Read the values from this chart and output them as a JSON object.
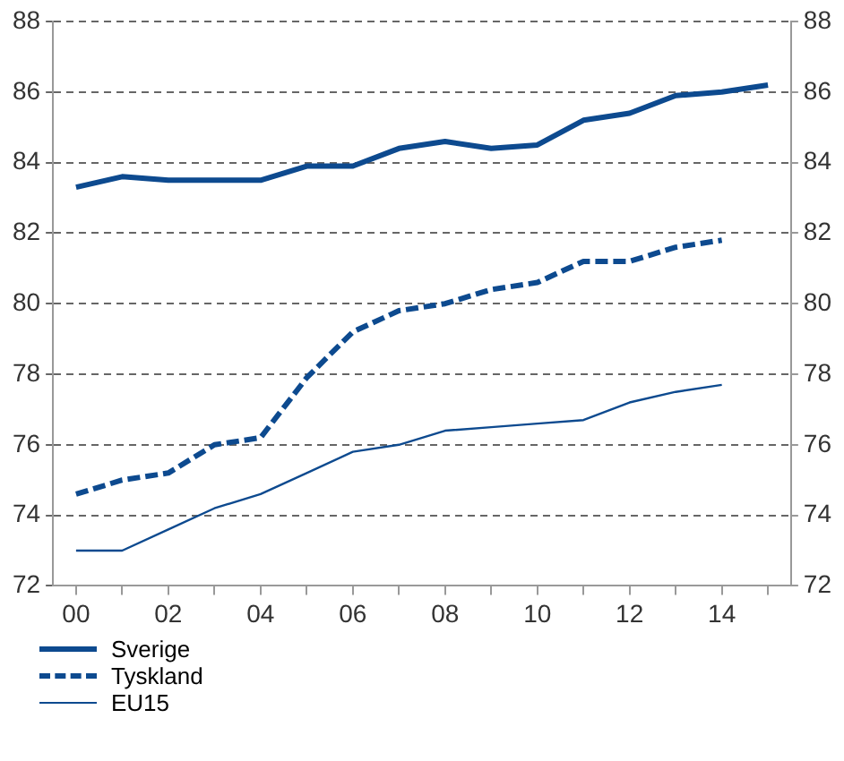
{
  "chart_data": {
    "type": "line",
    "x": [
      0,
      1,
      2,
      3,
      4,
      5,
      6,
      7,
      8,
      9,
      10,
      11,
      12,
      13,
      14,
      15
    ],
    "series": [
      {
        "name": "Sverige",
        "color": "#0d4a8f",
        "line_style": "solid",
        "values": [
          83.3,
          83.6,
          83.5,
          83.5,
          83.5,
          83.9,
          83.9,
          84.4,
          84.6,
          84.4,
          84.5,
          85.2,
          85.4,
          85.9,
          86.0,
          86.2
        ]
      },
      {
        "name": "Tyskland",
        "color": "#0d4a8f",
        "line_style": "dashed",
        "values": [
          74.6,
          75.0,
          75.2,
          76.0,
          76.2,
          77.9,
          79.2,
          79.8,
          80.0,
          80.4,
          80.6,
          81.2,
          81.2,
          81.6,
          81.8,
          null
        ]
      },
      {
        "name": "EU15",
        "color": "#0d4a8f",
        "line_style": "solid",
        "values": [
          73.0,
          73.0,
          73.6,
          74.2,
          74.6,
          75.2,
          75.8,
          76.0,
          76.4,
          76.5,
          76.6,
          76.7,
          77.2,
          77.5,
          77.7,
          null
        ]
      }
    ],
    "xlim": [
      -0.5,
      15.5
    ],
    "xticks": [
      {
        "value": 0,
        "label": "00"
      },
      {
        "value": 1,
        "label": null
      },
      {
        "value": 2,
        "label": "02"
      },
      {
        "value": 3,
        "label": null
      },
      {
        "value": 4,
        "label": "04"
      },
      {
        "value": 5,
        "label": null
      },
      {
        "value": 6,
        "label": "06"
      },
      {
        "value": 7,
        "label": null
      },
      {
        "value": 8,
        "label": "08"
      },
      {
        "value": 9,
        "label": null
      },
      {
        "value": 10,
        "label": "10"
      },
      {
        "value": 11,
        "label": null
      },
      {
        "value": 12,
        "label": "12"
      },
      {
        "value": 13,
        "label": null
      },
      {
        "value": 14,
        "label": "14"
      },
      {
        "value": 15,
        "label": null
      }
    ],
    "ylim": [
      72,
      88
    ],
    "yticks": [
      72,
      74,
      76,
      78,
      80,
      82,
      84,
      86,
      88
    ],
    "y2lim": [
      72,
      88
    ],
    "y2ticks": [
      72,
      74,
      76,
      78,
      80,
      82,
      84,
      86,
      88
    ],
    "grid": "y",
    "legend": "bottom",
    "marker": "none"
  }
}
